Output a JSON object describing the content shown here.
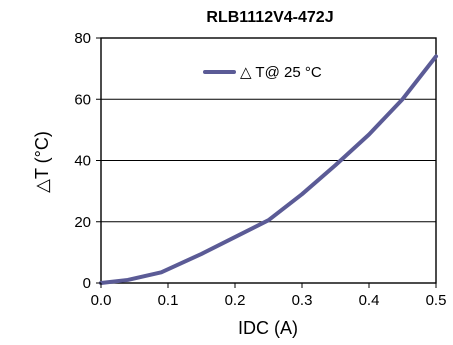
{
  "chart_data": {
    "type": "line",
    "title": "RLB1112V4-472J",
    "xlabel": "IDC (A)",
    "ylabel": "△T (°C)",
    "xlim": [
      0,
      0.5
    ],
    "ylim": [
      0,
      80
    ],
    "x_ticks": [
      "0.0",
      "0.1",
      "0.2",
      "0.3",
      "0.4",
      "0.5"
    ],
    "y_ticks": [
      "0",
      "20",
      "40",
      "60",
      "80"
    ],
    "grid": "horizontal",
    "legend_position": "top-center",
    "series": [
      {
        "name": "△ T@ 25 °C",
        "color": "#5b5b96",
        "x": [
          0.0,
          0.04,
          0.09,
          0.15,
          0.2,
          0.25,
          0.3,
          0.35,
          0.4,
          0.45,
          0.5
        ],
        "y": [
          0,
          1,
          3.5,
          9.5,
          15,
          20.5,
          29,
          38.5,
          48.5,
          60,
          74
        ]
      }
    ]
  }
}
